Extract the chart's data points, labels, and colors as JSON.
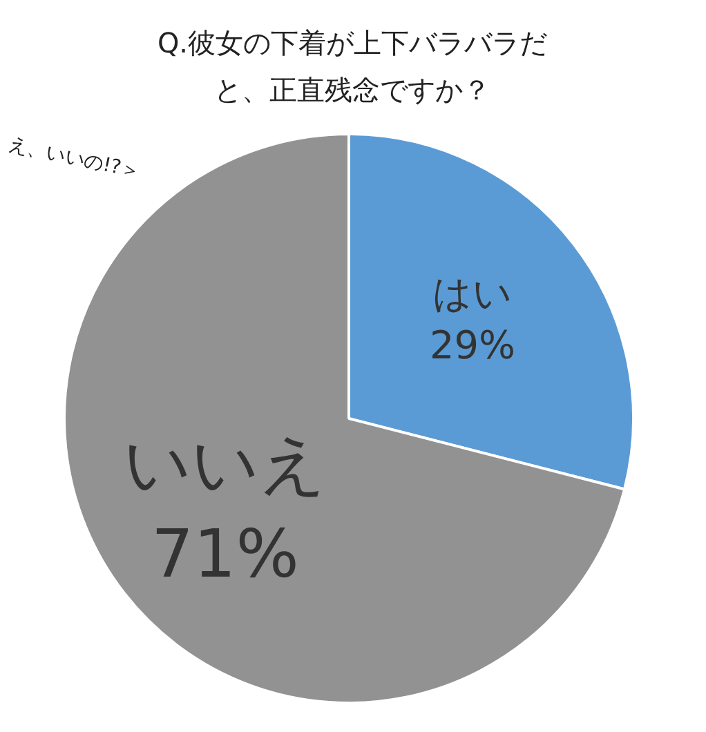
{
  "chart_data": {
    "type": "pie",
    "title": "Q.彼女の下着が上下バラバラだと、正直残念ですか？",
    "categories": [
      "はい",
      "いいえ"
    ],
    "values": [
      29,
      71
    ],
    "value_labels": [
      "29%",
      "71%"
    ],
    "colors": [
      "#5b9bd5",
      "#929292"
    ],
    "annotations": [
      "え、いいの!?＞"
    ],
    "legend": false
  }
}
